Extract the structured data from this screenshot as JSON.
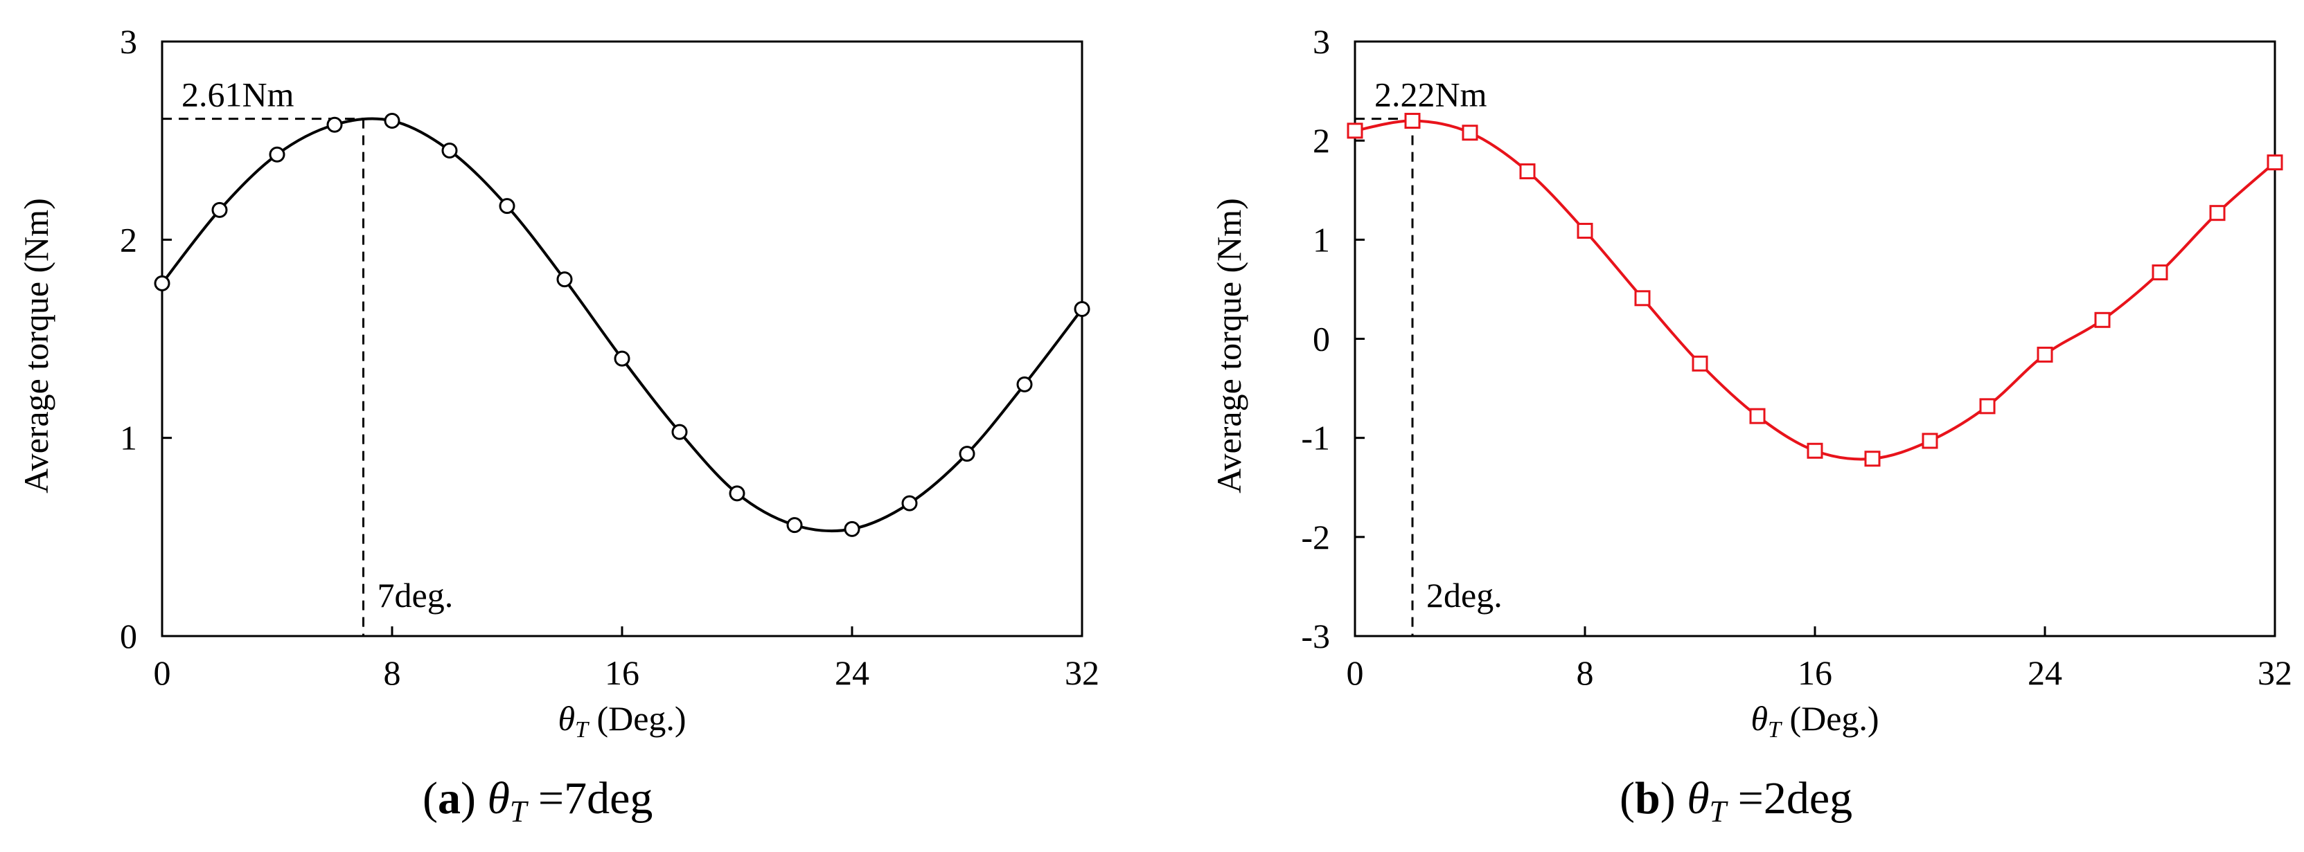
{
  "chart_data": [
    {
      "type": "line",
      "caption": {
        "letter": "a",
        "theta": "θ",
        "sub": "T",
        "text": " =7deg"
      },
      "xlabel": {
        "theta": "θ",
        "sub": "T",
        "text": " (Deg.)"
      },
      "ylabel": "Average torque  (Nm)",
      "xlim": [
        0,
        32
      ],
      "ylim": [
        0,
        3
      ],
      "xticks": [
        "0",
        "8",
        "16",
        "24",
        "32"
      ],
      "yticks": [
        "0",
        "1",
        "2",
        "3"
      ],
      "grid": false,
      "marker": "circle",
      "color": "#000000",
      "series": [
        {
          "x": [
            0,
            2,
            4,
            6,
            8,
            10,
            12,
            14,
            16,
            18,
            20,
            22,
            24,
            26,
            28,
            30,
            32
          ],
          "values": [
            1.78,
            2.15,
            2.43,
            2.58,
            2.6,
            2.45,
            2.17,
            1.8,
            1.4,
            1.03,
            0.72,
            0.56,
            0.54,
            0.67,
            0.92,
            1.27,
            1.65
          ]
        }
      ],
      "annotations": {
        "peak_value": 2.61,
        "peak_angle": 7,
        "peak_label": "2.61Nm",
        "angle_label": "7deg."
      }
    },
    {
      "type": "line",
      "caption": {
        "letter": "b",
        "theta": "θ",
        "sub": "T",
        "text": " =2deg"
      },
      "xlabel": {
        "theta": "θ",
        "sub": "T",
        "text": " (Deg.)"
      },
      "ylabel": "Average torque  (Nm)",
      "xlim": [
        0,
        32
      ],
      "ylim": [
        -3,
        3
      ],
      "xticks": [
        "0",
        "8",
        "16",
        "24",
        "32"
      ],
      "yticks": [
        "-3",
        "-2",
        "-1",
        "0",
        "1",
        "2",
        "3"
      ],
      "grid": false,
      "marker": "square",
      "color": "#e8131b",
      "series": [
        {
          "x": [
            0,
            2,
            4,
            6,
            8,
            10,
            12,
            14,
            16,
            18,
            20,
            22,
            24,
            26,
            28,
            30,
            32
          ],
          "values": [
            2.1,
            2.2,
            2.08,
            1.69,
            1.09,
            0.41,
            -0.25,
            -0.78,
            -1.13,
            -1.21,
            -1.03,
            -0.68,
            -0.16,
            0.19,
            0.67,
            1.27,
            1.78
          ]
        }
      ],
      "annotations": {
        "peak_value": 2.22,
        "peak_angle": 2,
        "peak_label": "2.22Nm",
        "angle_label": "2deg."
      }
    }
  ]
}
